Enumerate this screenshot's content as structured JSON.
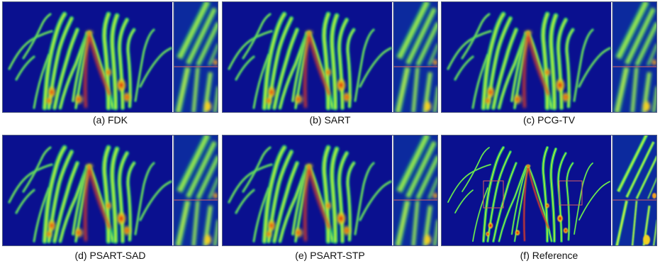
{
  "panels": [
    {
      "id": "a",
      "caption": "(a) FDK",
      "style": "blur"
    },
    {
      "id": "b",
      "caption": "(b) SART",
      "style": "blur"
    },
    {
      "id": "c",
      "caption": "(c) PCG-TV",
      "style": "blur"
    },
    {
      "id": "d",
      "caption": "(d) PSART-SAD",
      "style": "blur"
    },
    {
      "id": "e",
      "caption": "(e) PSART-STP",
      "style": "blur"
    },
    {
      "id": "f",
      "caption": "(f) Reference",
      "style": "sharp"
    }
  ],
  "colors": {
    "background": "#0a108f",
    "inset_background": "#0c2a9e",
    "inset_border": "#d86060",
    "frame": "#556080"
  }
}
